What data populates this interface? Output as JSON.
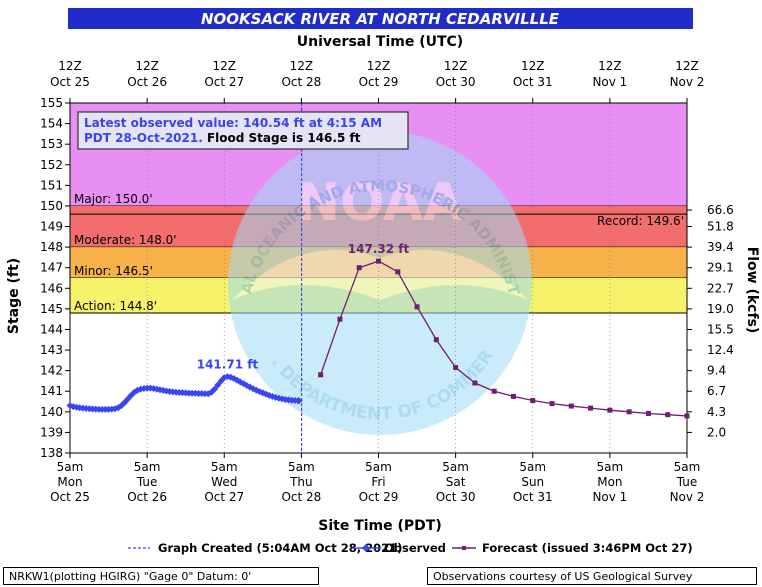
{
  "chart_data": {
    "type": "line",
    "title": "NOOKSACK RIVER AT NORTH CEDARVILLLE",
    "top_axis_label": "Universal Time (UTC)",
    "xlabel": "Site Time (PDT)",
    "ylabel": "Stage (ft)",
    "ylabel_right": "Flow (kcfs)",
    "ylim": [
      138,
      155
    ],
    "yticks": [
      138,
      139,
      140,
      141,
      142,
      143,
      144,
      145,
      146,
      147,
      148,
      149,
      150,
      151,
      152,
      153,
      154,
      155
    ],
    "xlim": [
      "2021-10-25T05:00",
      "2021-11-02T05:00"
    ],
    "x_ticks_bottom": [
      {
        "x": "2021-10-25T05:00",
        "l1": "5am",
        "l2": "Mon",
        "l3": "Oct 25"
      },
      {
        "x": "2021-10-26T05:00",
        "l1": "5am",
        "l2": "Tue",
        "l3": "Oct 26"
      },
      {
        "x": "2021-10-27T05:00",
        "l1": "5am",
        "l2": "Wed",
        "l3": "Oct 27"
      },
      {
        "x": "2021-10-28T05:00",
        "l1": "5am",
        "l2": "Thu",
        "l3": "Oct 28"
      },
      {
        "x": "2021-10-29T05:00",
        "l1": "5am",
        "l2": "Fri",
        "l3": "Oct 29"
      },
      {
        "x": "2021-10-30T05:00",
        "l1": "5am",
        "l2": "Sat",
        "l3": "Oct 30"
      },
      {
        "x": "2021-10-31T05:00",
        "l1": "5am",
        "l2": "Sun",
        "l3": "Oct 31"
      },
      {
        "x": "2021-11-01T05:00",
        "l1": "5am",
        "l2": "Mon",
        "l3": "Nov 1"
      },
      {
        "x": "2021-11-02T05:00",
        "l1": "5am",
        "l2": "Tue",
        "l3": "Nov 2"
      }
    ],
    "x_ticks_top": [
      {
        "l1": "12Z",
        "l2": "Oct 25"
      },
      {
        "l1": "12Z",
        "l2": "Oct 26"
      },
      {
        "l1": "12Z",
        "l2": "Oct 27"
      },
      {
        "l1": "12Z",
        "l2": "Oct 28"
      },
      {
        "l1": "12Z",
        "l2": "Oct 29"
      },
      {
        "l1": "12Z",
        "l2": "Oct 30"
      },
      {
        "l1": "12Z",
        "l2": "Oct 31"
      },
      {
        "l1": "12Z",
        "l2": "Nov  1"
      },
      {
        "l1": "12Z",
        "l2": "Nov  2"
      }
    ],
    "flow_ticks": [
      {
        "stage": 149.8,
        "label": "66.6"
      },
      {
        "stage": 149.0,
        "label": "51.8"
      },
      {
        "stage": 148.0,
        "label": "39.4"
      },
      {
        "stage": 147.0,
        "label": "29.1"
      },
      {
        "stage": 146.0,
        "label": "22.7"
      },
      {
        "stage": 145.0,
        "label": "19.0"
      },
      {
        "stage": 144.0,
        "label": "15.5"
      },
      {
        "stage": 143.0,
        "label": "12.4"
      },
      {
        "stage": 142.0,
        "label": "9.4"
      },
      {
        "stage": 141.0,
        "label": "6.7"
      },
      {
        "stage": 140.0,
        "label": "4.3"
      },
      {
        "stage": 139.0,
        "label": "2.0"
      }
    ],
    "flood_categories": [
      {
        "name": "Major",
        "label": "Major: 150.0'",
        "from": 150.0,
        "to": 155.0,
        "color": "#e88ff4"
      },
      {
        "name": "Moderate",
        "label": "Moderate: 148.0'",
        "from": 148.0,
        "to": 150.0,
        "color": "#f36d6d"
      },
      {
        "name": "Minor",
        "label": "Minor: 146.5'",
        "from": 146.5,
        "to": 148.0,
        "color": "#f7b24a"
      },
      {
        "name": "Action",
        "label": "Action: 144.8'",
        "from": 144.8,
        "to": 146.5,
        "color": "#f6f26a"
      }
    ],
    "record": {
      "label": "Record: 149.6'",
      "stage": 149.6
    },
    "graph_created": "2021-10-28T05:04",
    "series": [
      {
        "name": "Observed",
        "color": "#3a44f0",
        "peak_label": "141.71 ft",
        "points": [
          [
            "2021-10-25T05:00",
            140.3
          ],
          [
            "2021-10-25T06:00",
            140.25
          ],
          [
            "2021-10-25T07:00",
            140.22
          ],
          [
            "2021-10-25T08:00",
            140.2
          ],
          [
            "2021-10-25T09:00",
            140.18
          ],
          [
            "2021-10-25T10:00",
            140.16
          ],
          [
            "2021-10-25T11:00",
            140.15
          ],
          [
            "2021-10-25T12:00",
            140.14
          ],
          [
            "2021-10-25T13:00",
            140.13
          ],
          [
            "2021-10-25T14:00",
            140.12
          ],
          [
            "2021-10-25T15:00",
            140.12
          ],
          [
            "2021-10-25T16:00",
            140.12
          ],
          [
            "2021-10-25T17:00",
            140.12
          ],
          [
            "2021-10-25T18:00",
            140.13
          ],
          [
            "2021-10-25T19:00",
            140.15
          ],
          [
            "2021-10-25T20:00",
            140.2
          ],
          [
            "2021-10-25T21:00",
            140.3
          ],
          [
            "2021-10-25T22:00",
            140.45
          ],
          [
            "2021-10-25T23:00",
            140.62
          ],
          [
            "2021-10-26T00:00",
            140.8
          ],
          [
            "2021-10-26T01:00",
            140.95
          ],
          [
            "2021-10-26T02:00",
            141.05
          ],
          [
            "2021-10-26T03:00",
            141.1
          ],
          [
            "2021-10-26T04:00",
            141.13
          ],
          [
            "2021-10-26T05:00",
            141.15
          ],
          [
            "2021-10-26T06:00",
            141.15
          ],
          [
            "2021-10-26T07:00",
            141.13
          ],
          [
            "2021-10-26T08:00",
            141.1
          ],
          [
            "2021-10-26T09:00",
            141.07
          ],
          [
            "2021-10-26T10:00",
            141.04
          ],
          [
            "2021-10-26T11:00",
            141.01
          ],
          [
            "2021-10-26T12:00",
            140.99
          ],
          [
            "2021-10-26T13:00",
            140.97
          ],
          [
            "2021-10-26T14:00",
            140.95
          ],
          [
            "2021-10-26T15:00",
            140.94
          ],
          [
            "2021-10-26T16:00",
            140.93
          ],
          [
            "2021-10-26T17:00",
            140.92
          ],
          [
            "2021-10-26T18:00",
            140.91
          ],
          [
            "2021-10-26T19:00",
            140.9
          ],
          [
            "2021-10-26T20:00",
            140.9
          ],
          [
            "2021-10-26T21:00",
            140.89
          ],
          [
            "2021-10-26T22:00",
            140.89
          ],
          [
            "2021-10-26T23:00",
            140.88
          ],
          [
            "2021-10-27T00:00",
            140.88
          ],
          [
            "2021-10-27T01:00",
            140.95
          ],
          [
            "2021-10-27T02:00",
            141.1
          ],
          [
            "2021-10-27T03:00",
            141.3
          ],
          [
            "2021-10-27T04:00",
            141.5
          ],
          [
            "2021-10-27T05:00",
            141.66
          ],
          [
            "2021-10-27T06:00",
            141.71
          ],
          [
            "2021-10-27T07:00",
            141.68
          ],
          [
            "2021-10-27T08:00",
            141.62
          ],
          [
            "2021-10-27T09:00",
            141.54
          ],
          [
            "2021-10-27T10:00",
            141.45
          ],
          [
            "2021-10-27T11:00",
            141.37
          ],
          [
            "2021-10-27T12:00",
            141.28
          ],
          [
            "2021-10-27T13:00",
            141.2
          ],
          [
            "2021-10-27T14:00",
            141.12
          ],
          [
            "2021-10-27T15:00",
            141.05
          ],
          [
            "2021-10-27T16:00",
            140.98
          ],
          [
            "2021-10-27T17:00",
            140.92
          ],
          [
            "2021-10-27T18:00",
            140.86
          ],
          [
            "2021-10-27T19:00",
            140.8
          ],
          [
            "2021-10-27T20:00",
            140.75
          ],
          [
            "2021-10-27T21:00",
            140.7
          ],
          [
            "2021-10-27T22:00",
            140.66
          ],
          [
            "2021-10-27T23:00",
            140.63
          ],
          [
            "2021-10-28T00:00",
            140.6
          ],
          [
            "2021-10-28T01:00",
            140.58
          ],
          [
            "2021-10-28T02:00",
            140.56
          ],
          [
            "2021-10-28T03:00",
            140.55
          ],
          [
            "2021-10-28T04:00",
            140.54
          ],
          [
            "2021-10-28T04:15",
            140.54
          ]
        ]
      },
      {
        "name": "Forecast (issued 3:46PM Oct 27)",
        "color": "#6e1f70",
        "peak_label": "147.32 ft",
        "points": [
          [
            "2021-10-28T11:00",
            141.8
          ],
          [
            "2021-10-28T17:00",
            144.5
          ],
          [
            "2021-10-28T23:00",
            147.0
          ],
          [
            "2021-10-29T05:00",
            147.32
          ],
          [
            "2021-10-29T11:00",
            146.8
          ],
          [
            "2021-10-29T17:00",
            145.1
          ],
          [
            "2021-10-29T23:00",
            143.5
          ],
          [
            "2021-10-30T05:00",
            142.15
          ],
          [
            "2021-10-30T11:00",
            141.4
          ],
          [
            "2021-10-30T17:00",
            141.0
          ],
          [
            "2021-10-30T23:00",
            140.75
          ],
          [
            "2021-10-31T05:00",
            140.55
          ],
          [
            "2021-10-31T11:00",
            140.4
          ],
          [
            "2021-10-31T17:00",
            140.28
          ],
          [
            "2021-10-31T23:00",
            140.18
          ],
          [
            "2021-11-01T05:00",
            140.08
          ],
          [
            "2021-11-01T11:00",
            140.0
          ],
          [
            "2021-11-01T17:00",
            139.92
          ],
          [
            "2021-11-01T23:00",
            139.86
          ],
          [
            "2021-11-02T05:00",
            139.8
          ]
        ]
      }
    ],
    "legend": {
      "created": "Graph Created (5:04AM Oct 28, 2021)",
      "observed": "Observed",
      "forecast": "Forecast (issued 3:46PM Oct 27)"
    }
  },
  "info": {
    "latest_line1": "Latest observed value: 140.54 ft at 4:15 AM",
    "latest_line2_prefix": "PDT 28-Oct-2021.",
    "flood_stage": " Flood Stage is 146.5 ft"
  },
  "footer": {
    "left": "NRKW1(plotting HGIRG) \"Gage 0\" Datum: 0'",
    "right": "Observations courtesy of US Geological Survey"
  },
  "watermark": {
    "text_top": "NATIONAL OCEANIC AND ATMOSPHERIC ADMINISTRATION",
    "text_bottom": "U.S. DEPARTMENT OF COMMERCE",
    "center": "NOAA"
  },
  "colors": {
    "title_bar": "#1f2cc8",
    "info_text": "#3a44f0",
    "watermark": "#9fdcf5"
  }
}
